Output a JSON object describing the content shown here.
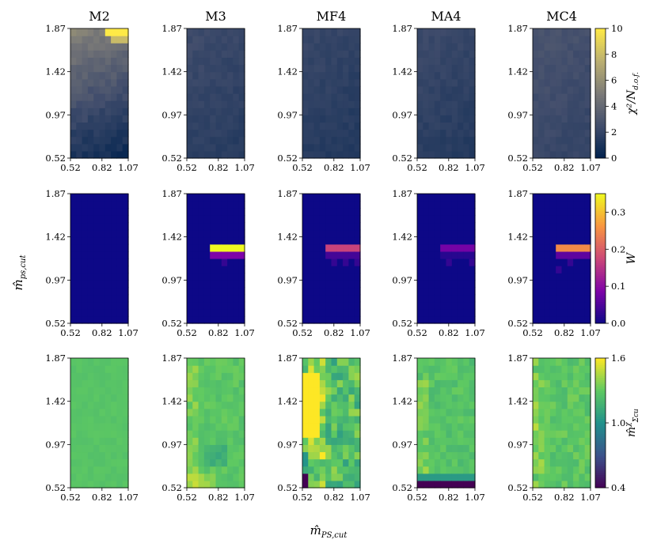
{
  "chart_data": {
    "type": "heatmap",
    "layout": "3 rows x 5 columns of heatmap panels",
    "columns": [
      "M2",
      "M3",
      "MF4",
      "MA4",
      "MC4"
    ],
    "x_ticks": [
      "0.52",
      "0.82",
      "1.07"
    ],
    "y_ticks": [
      "0.52",
      "0.97",
      "1.42",
      "1.87"
    ],
    "x_range": [
      0.52,
      1.07
    ],
    "y_range": [
      0.52,
      1.87
    ],
    "xlabel": "m̂",
    "xlabel_sub": "PS,cut",
    "ylabel": "m̂",
    "ylabel_sub": "ps,cut",
    "rows": [
      {
        "name": "chi2-per-dof",
        "colormap": "cividis",
        "colorbar_label": "χ²/N",
        "colorbar_label_sub": "d.o.f.",
        "colorbar_range": [
          0,
          10
        ],
        "colorbar_ticks": [
          "0",
          "2",
          "4",
          "6",
          "8",
          "10"
        ],
        "panels": [
          {
            "panel": "M2",
            "description": "gradient from ~1 at low cuts to ~5 at top; max ~10 at top-right corner"
          },
          {
            "panel": "M3",
            "description": "~1-2 everywhere"
          },
          {
            "panel": "MF4",
            "description": "~1-2 everywhere"
          },
          {
            "panel": "MA4",
            "description": "~1-2 everywhere"
          },
          {
            "panel": "MC4",
            "description": "~1.5-2.5 everywhere"
          }
        ]
      },
      {
        "name": "W",
        "colormap": "plasma",
        "colorbar_label": "W",
        "colorbar_range": [
          0.0,
          0.35
        ],
        "colorbar_ticks": [
          "0.0",
          "0.1",
          "0.2",
          "0.3"
        ],
        "panels": [
          {
            "panel": "M2",
            "description": "~0 everywhere"
          },
          {
            "panel": "M3",
            "description": "~0.35 band at m̂_ps,cut ≈ 1.15, m̂_PS,cut ≥ 0.82"
          },
          {
            "panel": "MF4",
            "description": "~0.17 band at m̂_ps,cut ≈ 1.15"
          },
          {
            "panel": "MA4",
            "description": "~0.08 band at m̂_ps,cut ≈ 1.15"
          },
          {
            "panel": "MC4",
            "description": "~0.25 band at m̂_ps,cut ≈ 1.15"
          }
        ]
      },
      {
        "name": "m-hat-x-fit",
        "colormap": "viridis",
        "colorbar_label": "m̂",
        "colorbar_label_sub": "Σcu",
        "colorbar_label_sup": "χ",
        "colorbar_range": [
          0.4,
          1.6
        ],
        "colorbar_ticks": [
          "0.4",
          "1.0",
          "1.6"
        ],
        "panels": [
          {
            "panel": "M2",
            "description": "~1.25 uniform"
          },
          {
            "panel": "M3",
            "description": "~1.25-1.35 with high values near low m̂_PS,cut"
          },
          {
            "panel": "MF4",
            "description": "large variation; ~1.6 at low m̂_PS,cut, ~0.4 at bottom-left"
          },
          {
            "panel": "MA4",
            "description": "~1.25, drops to ~0.4 at lowest m̂_ps,cut"
          },
          {
            "panel": "MC4",
            "description": "~1.2-1.4 with mild variation"
          }
        ]
      }
    ]
  }
}
